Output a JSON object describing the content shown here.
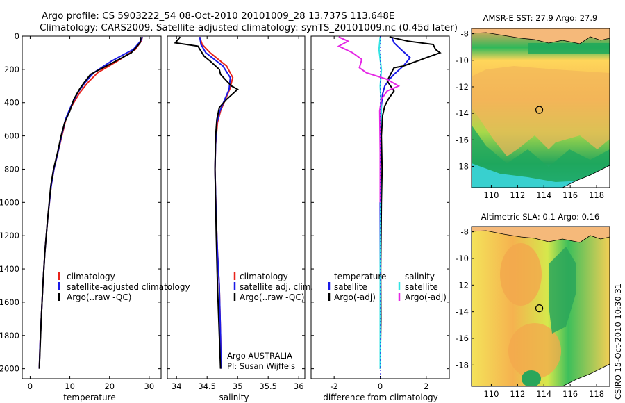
{
  "header": {
    "title_line1": "Argo profile: CS 5903222_54 08-Oct-2010 20101009_28 13.737S 113.648E",
    "title_line2": "Climatology: CARS2009. Satellite-adjusted climatology: synTS_20101009.nc (0.45d later)"
  },
  "credit": "CSIRO 15-Oct-2010 10:30:31",
  "colors": {
    "climatology": "#e8231b",
    "satellite": "#1a1ae6",
    "argo": "#000000",
    "argo_adj": "#e526e5",
    "sat_salinity": "#33e3e3",
    "coast": "#f5b97a"
  },
  "chart_data": [
    {
      "type": "line",
      "id": "temperature",
      "xlabel": "temperature",
      "ylabel": "",
      "xlim": [
        -2,
        33
      ],
      "ylim": [
        2060,
        0
      ],
      "xticks": [
        "0",
        "10",
        "20",
        "30"
      ],
      "xtick_values": [
        0,
        10,
        20,
        30
      ],
      "yticks": [
        "0",
        "200",
        "400",
        "600",
        "800",
        "1000",
        "1200",
        "1400",
        "1600",
        "1800",
        "2000"
      ],
      "ytick_values": [
        0,
        200,
        400,
        600,
        800,
        1000,
        1200,
        1400,
        1600,
        1800,
        2000
      ],
      "legend": [
        "climatology",
        "satellite-adjusted climatology",
        "Argo(..raw -QC)"
      ],
      "series": [
        {
          "name": "climatology",
          "color": "#e8231b",
          "x": [
            28.3,
            28.0,
            26.5,
            22.0,
            17.0,
            14.5,
            12.5,
            10.5,
            9.0,
            8.0,
            7.0,
            6.0,
            5.3,
            4.4,
            3.7,
            3.2,
            2.8,
            2.5,
            2.3
          ],
          "y": [
            5,
            30,
            80,
            150,
            220,
            280,
            340,
            420,
            500,
            600,
            700,
            800,
            900,
            1100,
            1300,
            1500,
            1700,
            1850,
            2000
          ]
        },
        {
          "name": "satellite",
          "color": "#1a1ae6",
          "x": [
            28.3,
            27.8,
            26.0,
            20.5,
            16.0,
            13.8,
            12.0,
            10.3,
            8.9,
            7.9,
            7.0,
            6.0,
            5.3,
            4.4,
            3.7,
            3.2,
            2.8,
            2.5,
            2.3
          ],
          "y": [
            5,
            30,
            80,
            150,
            220,
            280,
            340,
            420,
            500,
            600,
            700,
            800,
            900,
            1100,
            1300,
            1500,
            1700,
            1850,
            2000
          ]
        },
        {
          "name": "Argo",
          "color": "#000000",
          "x": [
            27.9,
            27.7,
            25.5,
            20.0,
            15.2,
            13.6,
            12.4,
            11.0,
            10.0,
            8.7,
            7.8,
            6.9,
            5.9,
            5.2,
            4.4,
            3.7,
            3.2,
            2.8,
            2.3
          ],
          "y": [
            5,
            40,
            100,
            170,
            230,
            280,
            320,
            380,
            450,
            520,
            600,
            700,
            800,
            900,
            1100,
            1300,
            1500,
            1700,
            2000
          ]
        }
      ]
    },
    {
      "type": "line",
      "id": "salinity",
      "xlabel": "salinity",
      "xlim": [
        33.85,
        36.1
      ],
      "ylim": [
        2060,
        0
      ],
      "xticks": [
        "34",
        "34.5",
        "35",
        "35.5",
        "36"
      ],
      "xtick_values": [
        34,
        34.5,
        35,
        35.5,
        36
      ],
      "legend": [
        "climatology",
        "satellite adj. clim.",
        "Argo(..raw -QC)"
      ],
      "annotation": [
        "Argo AUSTRALIA",
        "PI: Susan Wijffels"
      ],
      "series": [
        {
          "name": "climatology",
          "color": "#e8231b",
          "x": [
            34.38,
            34.42,
            34.55,
            34.82,
            34.92,
            34.87,
            34.8,
            34.72,
            34.67,
            34.64,
            34.63,
            34.65,
            34.67,
            34.7,
            34.72,
            34.73
          ],
          "y": [
            5,
            50,
            100,
            180,
            250,
            320,
            380,
            450,
            520,
            650,
            800,
            1100,
            1300,
            1500,
            1800,
            2000
          ]
        },
        {
          "name": "satellite",
          "color": "#1a1ae6",
          "x": [
            34.38,
            34.4,
            34.48,
            34.76,
            34.88,
            34.86,
            34.79,
            34.71,
            34.66,
            34.64,
            34.63,
            34.65,
            34.67,
            34.7,
            34.72,
            34.73
          ],
          "y": [
            5,
            50,
            100,
            180,
            250,
            320,
            380,
            450,
            520,
            650,
            800,
            1100,
            1300,
            1500,
            1800,
            2000
          ]
        },
        {
          "name": "Argo",
          "color": "#000000",
          "x": [
            34.06,
            33.98,
            34.35,
            34.45,
            34.55,
            34.7,
            34.72,
            34.82,
            34.9,
            35.0,
            34.82,
            34.7,
            34.66,
            34.64,
            34.63,
            34.65,
            34.67,
            34.7,
            34.72
          ],
          "y": [
            5,
            40,
            60,
            120,
            150,
            200,
            230,
            270,
            300,
            320,
            380,
            430,
            500,
            600,
            800,
            1200,
            1500,
            1800,
            2000
          ]
        }
      ]
    },
    {
      "type": "line",
      "id": "difference",
      "xlabel": "difference from climatology",
      "xlim": [
        -3.0,
        3.0
      ],
      "ylim": [
        2060,
        0
      ],
      "xticks": [
        "-2",
        "0",
        "2"
      ],
      "xtick_values": [
        -2,
        0,
        2
      ],
      "legend_left_title": "temperature",
      "legend_right_title": "salinity",
      "legend": [
        "satellite",
        "Argo(-adj)",
        "satellite",
        "Argo(-adj)"
      ],
      "series": [
        {
          "name": "temperature satellite",
          "color": "#1a1ae6",
          "x": [
            0.5,
            0.6,
            0.9,
            1.3,
            1.0,
            0.6,
            0.4,
            0.2,
            0.1,
            0.05,
            0.03,
            0.02,
            0.0,
            0.0,
            0.0
          ],
          "y": [
            5,
            40,
            80,
            130,
            180,
            230,
            260,
            300,
            350,
            420,
            500,
            700,
            1000,
            1500,
            2000
          ]
        },
        {
          "name": "temperature Argo",
          "color": "#000000",
          "x": [
            0.4,
            1.2,
            2.3,
            2.4,
            2.6,
            2.0,
            1.6,
            1.0,
            0.6,
            0.45,
            0.3,
            0.6,
            0.35,
            0.2,
            0.1,
            0.05,
            0.08,
            0.05,
            0.02,
            0.03,
            0.0
          ],
          "y": [
            5,
            30,
            50,
            80,
            100,
            130,
            150,
            180,
            190,
            230,
            270,
            330,
            380,
            420,
            480,
            600,
            800,
            1000,
            1400,
            1700,
            2000
          ]
        },
        {
          "name": "salinity satellite",
          "color": "#33e3e3",
          "x": [
            0.0,
            -0.05,
            0.05,
            0.0,
            0.05,
            0.0,
            0.02,
            0.0,
            0.0
          ],
          "y": [
            5,
            80,
            200,
            300,
            450,
            600,
            900,
            1400,
            2000
          ]
        },
        {
          "name": "salinity Argo",
          "color": "#e526e5",
          "x": [
            -1.8,
            -1.4,
            -1.8,
            -1.2,
            -0.8,
            -0.9,
            -0.6,
            0.3,
            0.8,
            0.3,
            0.05,
            -0.02,
            0.0,
            0.0
          ],
          "y": [
            5,
            30,
            60,
            100,
            140,
            190,
            220,
            260,
            300,
            330,
            380,
            450,
            700,
            1000
          ]
        }
      ]
    },
    {
      "type": "heatmap",
      "id": "sst_map",
      "title": "AMSR-E SST: 27.9 Argo: 27.9",
      "xlim": [
        108.5,
        119
      ],
      "ylim": [
        -19.6,
        -7.6
      ],
      "xticks": [
        "110",
        "112",
        "114",
        "116",
        "118"
      ],
      "xtick_values": [
        110,
        112,
        114,
        116,
        118
      ],
      "yticks": [
        "-8",
        "-10",
        "-12",
        "-14",
        "-16",
        "-18"
      ],
      "ytick_values": [
        -8,
        -10,
        -12,
        -14,
        -16,
        -18
      ],
      "marker": {
        "lon": 113.648,
        "lat": -13.737
      }
    },
    {
      "type": "heatmap",
      "id": "sla_map",
      "title": "Altimetric SLA: 0.1 Argo: 0.16",
      "xlim": [
        108.5,
        119
      ],
      "ylim": [
        -19.6,
        -7.6
      ],
      "xticks": [
        "110",
        "112",
        "114",
        "116",
        "118"
      ],
      "xtick_values": [
        110,
        112,
        114,
        116,
        118
      ],
      "yticks": [
        "-8",
        "-10",
        "-12",
        "-14",
        "-16",
        "-18"
      ],
      "ytick_values": [
        -8,
        -10,
        -12,
        -14,
        -16,
        -18
      ],
      "marker": {
        "lon": 113.648,
        "lat": -13.737
      }
    }
  ]
}
